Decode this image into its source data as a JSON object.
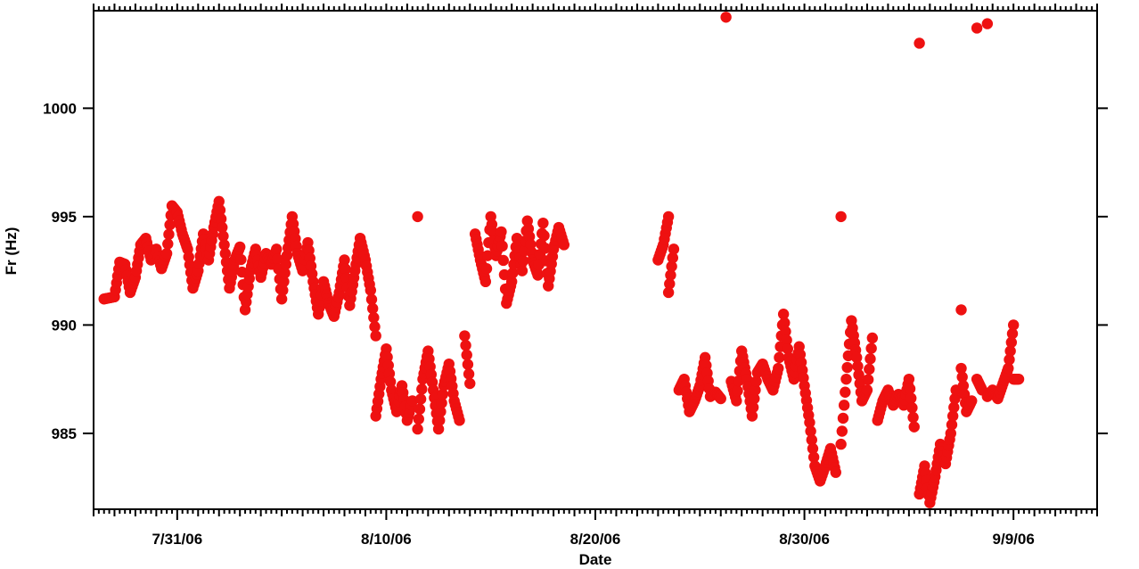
{
  "chart_data": {
    "type": "scatter",
    "title": "",
    "xlabel": "Date",
    "ylabel": "Fr (Hz)",
    "x_axis_type": "date",
    "xlim": [
      "2006-07-27",
      "2006-09-13"
    ],
    "ylim": [
      981.5,
      1004.5
    ],
    "xticks": [
      "2006-07-31",
      "2006-08-10",
      "2006-08-20",
      "2006-08-30",
      "2006-09-09"
    ],
    "xtick_labels": [
      "7/31/06",
      "8/10/06",
      "8/20/06",
      "8/30/06",
      "9/9/06"
    ],
    "yticks": [
      985,
      990,
      995,
      1000
    ],
    "ytick_labels": [
      "985",
      "990",
      "995",
      "1000"
    ],
    "grid": false,
    "legend": "none",
    "marker_color": "#ee1111",
    "series": [
      {
        "points": [
          [
            "2006-07-27 12:00",
            991.2
          ],
          [
            "2006-07-28 00:00",
            991.3
          ],
          [
            "2006-07-28 06:00",
            992.9
          ],
          [
            "2006-07-28 12:00",
            992.8
          ],
          [
            "2006-07-28 18:00",
            991.5
          ],
          [
            "2006-07-29 00:00",
            992.2
          ],
          [
            "2006-07-29 06:00",
            993.7
          ],
          [
            "2006-07-29 12:00",
            994.0
          ],
          [
            "2006-07-29 18:00",
            993.0
          ],
          [
            "2006-07-30 00:00",
            993.5
          ],
          [
            "2006-07-30 06:00",
            992.6
          ],
          [
            "2006-07-30 12:00",
            993.3
          ],
          [
            "2006-07-30 18:00",
            995.5
          ],
          [
            "2006-07-31 00:00",
            995.2
          ],
          [
            "2006-07-31 06:00",
            994.2
          ],
          [
            "2006-07-31 12:00",
            993.5
          ],
          [
            "2006-07-31 18:00",
            991.7
          ],
          [
            "2006-08-01 00:00",
            992.5
          ],
          [
            "2006-08-01 06:00",
            994.2
          ],
          [
            "2006-08-01 12:00",
            993.0
          ],
          [
            "2006-08-01 18:00",
            994.5
          ],
          [
            "2006-08-02 00:00",
            995.7
          ],
          [
            "2006-08-02 06:00",
            993.7
          ],
          [
            "2006-08-02 12:00",
            991.7
          ],
          [
            "2006-08-02 18:00",
            993.0
          ],
          [
            "2006-08-03 00:00",
            993.6
          ],
          [
            "2006-08-03 06:00",
            990.7
          ],
          [
            "2006-08-03 12:00",
            992.5
          ],
          [
            "2006-08-03 18:00",
            993.5
          ],
          [
            "2006-08-04 00:00",
            992.2
          ],
          [
            "2006-08-04 06:00",
            993.3
          ],
          [
            "2006-08-04 12:00",
            992.8
          ],
          [
            "2006-08-04 18:00",
            993.5
          ],
          [
            "2006-08-05 00:00",
            991.2
          ],
          [
            "2006-08-05 06:00",
            993.2
          ],
          [
            "2006-08-05 12:00",
            995.0
          ],
          [
            "2006-08-05 18:00",
            993.3
          ],
          [
            "2006-08-06 00:00",
            992.5
          ],
          [
            "2006-08-06 06:00",
            993.8
          ],
          [
            "2006-08-06 12:00",
            992.0
          ],
          [
            "2006-08-06 18:00",
            990.5
          ],
          [
            "2006-08-07 00:00",
            992.0
          ],
          [
            "2006-08-07 06:00",
            991.0
          ],
          [
            "2006-08-07 12:00",
            990.4
          ],
          [
            "2006-08-07 18:00",
            991.5
          ],
          [
            "2006-08-08 00:00",
            993.0
          ],
          [
            "2006-08-08 06:00",
            990.9
          ],
          [
            "2006-08-08 12:00",
            992.5
          ],
          [
            "2006-08-08 18:00",
            994.0
          ],
          [
            "2006-08-09 00:00",
            993.0
          ],
          [
            "2006-08-09 06:00",
            991.6
          ],
          [
            "2006-08-09 12:00",
            989.5
          ],
          [
            "2006-08-09 12:00",
            985.8
          ],
          [
            "2006-08-09 18:00",
            987.5
          ],
          [
            "2006-08-10 00:00",
            988.9
          ],
          [
            "2006-08-10 06:00",
            987.0
          ],
          [
            "2006-08-10 12:00",
            986.0
          ],
          [
            "2006-08-10 18:00",
            987.2
          ],
          [
            "2006-08-11 00:00",
            985.6
          ],
          [
            "2006-08-11 06:00",
            986.5
          ],
          [
            "2006-08-11 12:00",
            995.0
          ],
          [
            "2006-08-11 12:00",
            985.2
          ],
          [
            "2006-08-11 18:00",
            987.5
          ],
          [
            "2006-08-12 00:00",
            988.8
          ],
          [
            "2006-08-12 06:00",
            987.0
          ],
          [
            "2006-08-12 12:00",
            985.2
          ],
          [
            "2006-08-12 18:00",
            987.2
          ],
          [
            "2006-08-13 00:00",
            988.2
          ],
          [
            "2006-08-13 06:00",
            986.5
          ],
          [
            "2006-08-13 12:00",
            985.6
          ],
          [
            "2006-08-13 18:00",
            989.5
          ],
          [
            "2006-08-14 00:00",
            987.3
          ],
          [
            "2006-08-14 06:00",
            994.2
          ],
          [
            "2006-08-14 12:00",
            993.0
          ],
          [
            "2006-08-14 18:00",
            992.0
          ],
          [
            "2006-08-15 00:00",
            995.0
          ],
          [
            "2006-08-15 06:00",
            993.2
          ],
          [
            "2006-08-15 12:00",
            994.3
          ],
          [
            "2006-08-15 18:00",
            991.0
          ],
          [
            "2006-08-16 00:00",
            992.0
          ],
          [
            "2006-08-16 06:00",
            994.0
          ],
          [
            "2006-08-16 12:00",
            992.5
          ],
          [
            "2006-08-16 18:00",
            994.8
          ],
          [
            "2006-08-17 00:00",
            993.0
          ],
          [
            "2006-08-17 06:00",
            992.3
          ],
          [
            "2006-08-17 12:00",
            994.7
          ],
          [
            "2006-08-17 18:00",
            991.8
          ],
          [
            "2006-08-18 00:00",
            993.5
          ],
          [
            "2006-08-18 06:00",
            994.5
          ],
          [
            "2006-08-18 12:00",
            993.7
          ],
          [
            "2006-08-23 00:00",
            993.0
          ],
          [
            "2006-08-23 06:00",
            993.7
          ],
          [
            "2006-08-23 12:00",
            995.0
          ],
          [
            "2006-08-23 12:00",
            991.5
          ],
          [
            "2006-08-23 18:00",
            993.5
          ],
          [
            "2006-08-24 00:00",
            987.0
          ],
          [
            "2006-08-24 06:00",
            987.5
          ],
          [
            "2006-08-24 12:00",
            986.0
          ],
          [
            "2006-08-24 18:00",
            986.5
          ],
          [
            "2006-08-25 00:00",
            987.2
          ],
          [
            "2006-08-25 06:00",
            988.5
          ],
          [
            "2006-08-25 12:00",
            986.7
          ],
          [
            "2006-08-25 18:00",
            986.9
          ],
          [
            "2006-08-26 00:00",
            986.6
          ],
          [
            "2006-08-26 06:00",
            1004.2
          ],
          [
            "2006-08-26 12:00",
            987.4
          ],
          [
            "2006-08-26 18:00",
            986.5
          ],
          [
            "2006-08-27 00:00",
            988.8
          ],
          [
            "2006-08-27 06:00",
            987.5
          ],
          [
            "2006-08-27 12:00",
            985.8
          ],
          [
            "2006-08-27 18:00",
            987.8
          ],
          [
            "2006-08-28 00:00",
            988.2
          ],
          [
            "2006-08-28 06:00",
            987.5
          ],
          [
            "2006-08-28 12:00",
            987.0
          ],
          [
            "2006-08-28 18:00",
            988.0
          ],
          [
            "2006-08-29 00:00",
            990.5
          ],
          [
            "2006-08-29 06:00",
            988.5
          ],
          [
            "2006-08-29 12:00",
            987.5
          ],
          [
            "2006-08-29 18:00",
            989.0
          ],
          [
            "2006-08-30 00:00",
            987.2
          ],
          [
            "2006-08-30 06:00",
            985.5
          ],
          [
            "2006-08-30 12:00",
            983.5
          ],
          [
            "2006-08-30 18:00",
            982.8
          ],
          [
            "2006-08-31 00:00",
            983.5
          ],
          [
            "2006-08-31 06:00",
            984.3
          ],
          [
            "2006-08-31 12:00",
            983.2
          ],
          [
            "2006-08-31 18:00",
            995.0
          ],
          [
            "2006-08-31 18:00",
            984.5
          ],
          [
            "2006-09-01 00:00",
            987.5
          ],
          [
            "2006-09-01 06:00",
            990.2
          ],
          [
            "2006-09-01 12:00",
            988.5
          ],
          [
            "2006-09-01 18:00",
            986.5
          ],
          [
            "2006-09-02 00:00",
            987.0
          ],
          [
            "2006-09-02 06:00",
            989.4
          ],
          [
            "2006-09-02 12:00",
            985.6
          ],
          [
            "2006-09-02 18:00",
            986.5
          ],
          [
            "2006-09-03 00:00",
            987.0
          ],
          [
            "2006-09-03 06:00",
            986.3
          ],
          [
            "2006-09-03 12:00",
            986.8
          ],
          [
            "2006-09-03 18:00",
            986.3
          ],
          [
            "2006-09-04 00:00",
            987.5
          ],
          [
            "2006-09-04 06:00",
            985.3
          ],
          [
            "2006-09-04 12:00",
            1003.0
          ],
          [
            "2006-09-04 12:00",
            982.2
          ],
          [
            "2006-09-04 18:00",
            983.5
          ],
          [
            "2006-09-05 00:00",
            981.8
          ],
          [
            "2006-09-05 06:00",
            983.0
          ],
          [
            "2006-09-05 12:00",
            984.5
          ],
          [
            "2006-09-05 18:00",
            983.6
          ],
          [
            "2006-09-06 00:00",
            985.0
          ],
          [
            "2006-09-06 06:00",
            987.0
          ],
          [
            "2006-09-06 12:00",
            990.7
          ],
          [
            "2006-09-06 12:00",
            988.0
          ],
          [
            "2006-09-06 18:00",
            986.0
          ],
          [
            "2006-09-07 00:00",
            986.5
          ],
          [
            "2006-09-07 06:00",
            1003.7
          ],
          [
            "2006-09-07 06:00",
            987.5
          ],
          [
            "2006-09-07 12:00",
            987.0
          ],
          [
            "2006-09-07 18:00",
            1003.9
          ],
          [
            "2006-09-07 18:00",
            986.7
          ],
          [
            "2006-09-08 00:00",
            987.0
          ],
          [
            "2006-09-08 06:00",
            986.6
          ],
          [
            "2006-09-08 12:00",
            987.3
          ],
          [
            "2006-09-08 18:00",
            988.0
          ],
          [
            "2006-09-09 00:00",
            990.0
          ],
          [
            "2006-09-09 00:00",
            987.5
          ],
          [
            "2006-09-09 06:00",
            987.5
          ]
        ]
      }
    ]
  }
}
